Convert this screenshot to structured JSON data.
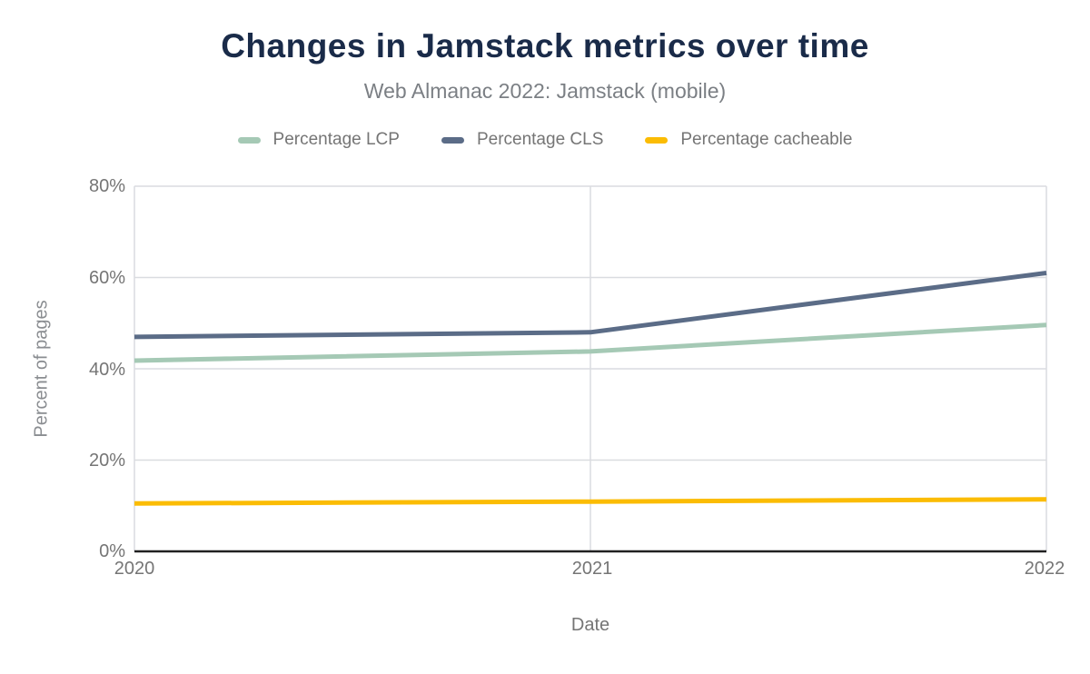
{
  "header": {
    "title": "Changes in Jamstack metrics over time",
    "subtitle": "Web Almanac 2022: Jamstack (mobile)"
  },
  "chart_data": {
    "type": "line",
    "title": "Changes in Jamstack metrics over time",
    "subtitle": "Web Almanac 2022: Jamstack (mobile)",
    "x": [
      "2020",
      "2021",
      "2022"
    ],
    "series": [
      {
        "name": "Percentage LCP",
        "color": "#a5c9b5",
        "values": [
          41.8,
          43.8,
          49.6
        ]
      },
      {
        "name": "Percentage CLS",
        "color": "#5b6c87",
        "values": [
          47.0,
          48.0,
          61.0
        ]
      },
      {
        "name": "Percentage cacheable",
        "color": "#fbbc04",
        "values": [
          10.5,
          10.9,
          11.4
        ]
      }
    ],
    "xlabel": "Date",
    "ylabel": "Percent of pages",
    "ylim": [
      0,
      80
    ],
    "y_ticks": [
      0,
      20,
      40,
      60,
      80
    ],
    "y_tick_labels": [
      "0%",
      "20%",
      "40%",
      "60%",
      "80%"
    ],
    "grid": true,
    "legend_position": "top"
  },
  "style": {
    "title_color": "#1a2b49",
    "subtitle_color": "#7b7f84",
    "axis_text_color": "#757575",
    "gridline_color": "#dadce0",
    "axis_line_color": "#212121"
  }
}
